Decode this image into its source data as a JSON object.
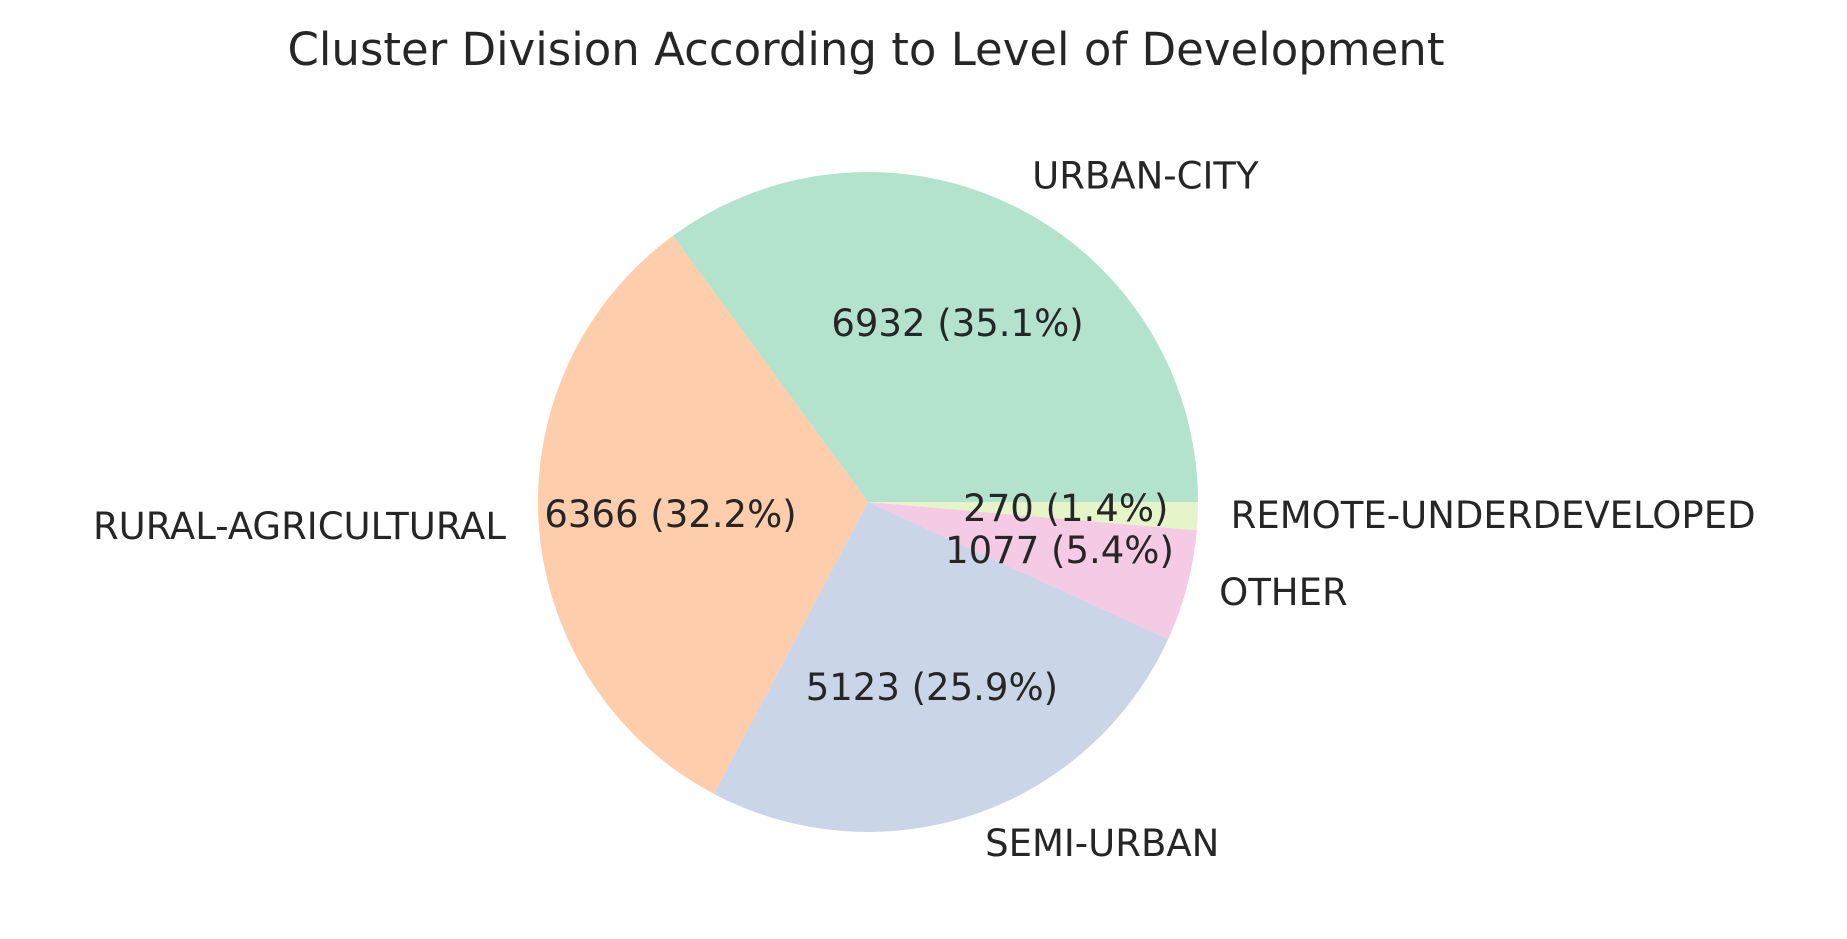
{
  "chart_data": {
    "type": "pie",
    "title": "Cluster Division According to Level of Development",
    "start_angle_deg": 0,
    "direction": "counterclockwise",
    "slices": [
      {
        "label": "URBAN-CITY",
        "value": 6932,
        "pct_label": "6932 (35.1%)",
        "color": "#b3e2cd"
      },
      {
        "label": "RURAL-AGRICULTURAL",
        "value": 6366,
        "pct_label": "6366 (32.2%)",
        "color": "#fdcdac"
      },
      {
        "label": "SEMI-URBAN",
        "value": 5123,
        "pct_label": "5123 (25.9%)",
        "color": "#cbd5e8"
      },
      {
        "label": "OTHER",
        "value": 1077,
        "pct_label": "1077 (5.4%)",
        "color": "#f4cae4"
      },
      {
        "label": "REMOTE-UNDERDEVELOPED",
        "value": 270,
        "pct_label": "270 (1.4%)",
        "color": "#e6f5c9"
      }
    ]
  }
}
